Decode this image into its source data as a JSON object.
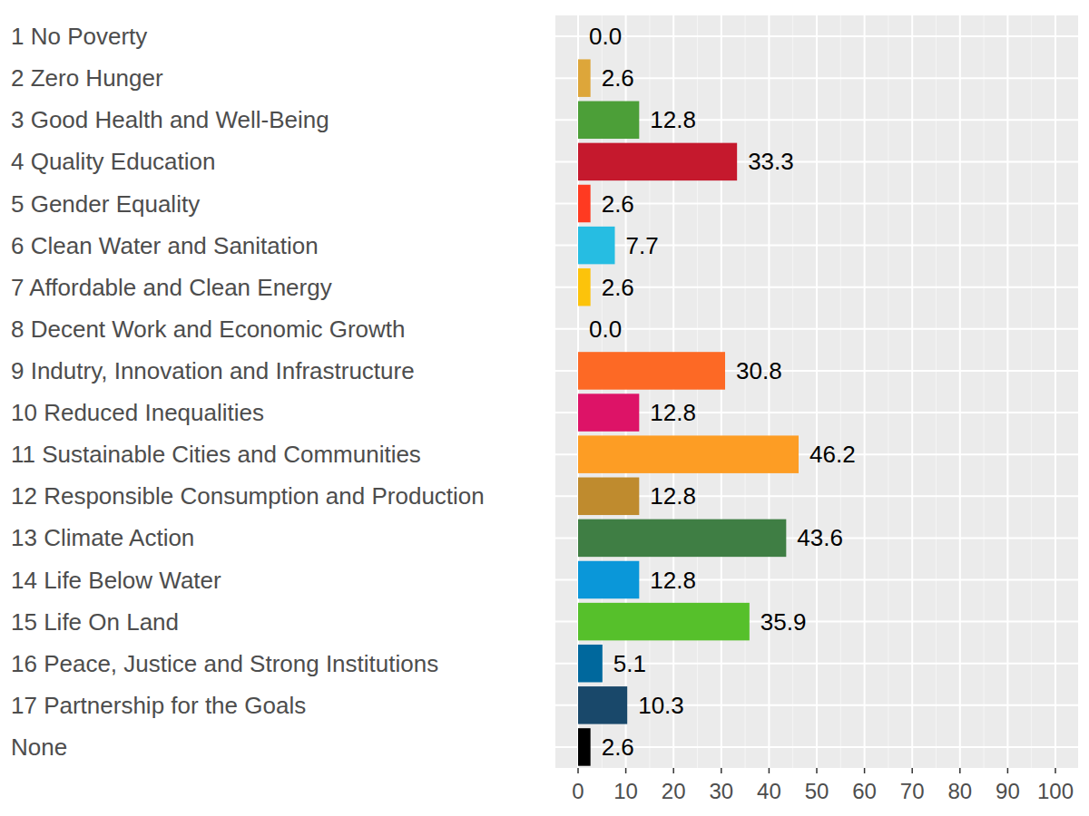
{
  "chart_data": {
    "type": "bar",
    "orientation": "horizontal",
    "categories": [
      "1 No Poverty",
      "2 Zero Hunger",
      "3 Good Health and Well-Being",
      "4 Quality Education",
      "5 Gender Equality",
      "6 Clean Water and Sanitation",
      "7 Affordable and Clean Energy",
      "8 Decent Work and Economic Growth",
      "9 Indutry, Innovation and Infrastructure",
      "10 Reduced Inequalities",
      "11 Sustainable Cities and Communities",
      "12 Responsible Consumption and Production",
      "13 Climate Action",
      "14 Life Below Water",
      "15 Life On Land",
      "16 Peace, Justice and Strong Institutions",
      "17 Partnership for the Goals",
      "None"
    ],
    "values": [
      0.0,
      2.6,
      12.8,
      33.3,
      2.6,
      7.7,
      2.6,
      0.0,
      30.8,
      12.8,
      46.2,
      12.8,
      43.6,
      12.8,
      35.9,
      5.1,
      10.3,
      2.6
    ],
    "value_labels": [
      "0.0",
      "2.6",
      "12.8",
      "33.3",
      "2.6",
      "7.7",
      "2.6",
      "0.0",
      "30.8",
      "12.8",
      "46.2",
      "12.8",
      "43.6",
      "12.8",
      "35.9",
      "5.1",
      "10.3",
      "2.6"
    ],
    "colors": [
      "#E5243B",
      "#DDA63A",
      "#4C9F38",
      "#C5192D",
      "#FF3A21",
      "#26BDE2",
      "#FCC30B",
      "#A21942",
      "#FD6925",
      "#DD1367",
      "#FD9D24",
      "#BF8B2E",
      "#3F7E44",
      "#0A97D9",
      "#56C02B",
      "#00689D",
      "#19486A",
      "#000000"
    ],
    "xlim": [
      0,
      100
    ],
    "xticks": [
      0,
      10,
      20,
      30,
      40,
      50,
      60,
      70,
      80,
      90,
      100
    ],
    "grid": true,
    "data_labels": true
  }
}
